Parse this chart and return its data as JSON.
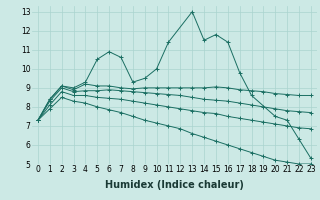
{
  "xlabel": "Humidex (Indice chaleur)",
  "bg_color": "#cce9e5",
  "grid_color": "#aad4cf",
  "line_color": "#1a6e62",
  "xlim": [
    -0.5,
    23.5
  ],
  "ylim": [
    5,
    13.3
  ],
  "xticks": [
    0,
    1,
    2,
    3,
    4,
    5,
    6,
    7,
    8,
    9,
    10,
    11,
    12,
    13,
    14,
    15,
    16,
    17,
    18,
    19,
    20,
    21,
    22,
    23
  ],
  "yticks": [
    5,
    6,
    7,
    8,
    9,
    10,
    11,
    12,
    13
  ],
  "series": [
    {
      "x": [
        0,
        1,
        2,
        3,
        4,
        5,
        6,
        7,
        8,
        9,
        10,
        11,
        13,
        14,
        15,
        16,
        17,
        18,
        20,
        21,
        22,
        23
      ],
      "y": [
        7.3,
        8.4,
        9.1,
        9.0,
        9.3,
        10.5,
        10.9,
        10.6,
        9.3,
        9.5,
        10.0,
        11.4,
        13.0,
        11.5,
        11.8,
        11.4,
        9.8,
        8.6,
        7.5,
        7.3,
        6.3,
        5.3
      ]
    },
    {
      "x": [
        0,
        1,
        2,
        3,
        4,
        5,
        6,
        7,
        8,
        9,
        10,
        11,
        12,
        13,
        14,
        15,
        16,
        17,
        18,
        19,
        20,
        21,
        22,
        23
      ],
      "y": [
        7.3,
        8.4,
        9.1,
        8.9,
        9.2,
        9.1,
        9.1,
        9.0,
        8.95,
        9.0,
        9.0,
        9.0,
        9.0,
        9.0,
        9.0,
        9.05,
        9.0,
        8.9,
        8.85,
        8.8,
        8.7,
        8.65,
        8.6,
        8.6
      ]
    },
    {
      "x": [
        0,
        1,
        2,
        3,
        4,
        5,
        6,
        7,
        8,
        9,
        10,
        11,
        12,
        13,
        14,
        15,
        16,
        17,
        18,
        19,
        20,
        21,
        22,
        23
      ],
      "y": [
        7.3,
        8.3,
        9.0,
        8.8,
        8.85,
        8.85,
        8.9,
        8.85,
        8.8,
        8.75,
        8.7,
        8.65,
        8.6,
        8.5,
        8.4,
        8.35,
        8.3,
        8.2,
        8.1,
        8.0,
        7.9,
        7.8,
        7.75,
        7.7
      ]
    },
    {
      "x": [
        0,
        1,
        2,
        3,
        4,
        5,
        6,
        7,
        8,
        9,
        10,
        11,
        12,
        13,
        14,
        15,
        16,
        17,
        18,
        19,
        20,
        21,
        22,
        23
      ],
      "y": [
        7.3,
        8.1,
        8.8,
        8.6,
        8.6,
        8.5,
        8.45,
        8.4,
        8.3,
        8.2,
        8.1,
        8.0,
        7.9,
        7.8,
        7.7,
        7.65,
        7.5,
        7.4,
        7.3,
        7.2,
        7.1,
        7.0,
        6.9,
        6.85
      ]
    },
    {
      "x": [
        0,
        1,
        2,
        3,
        4,
        5,
        6,
        7,
        8,
        9,
        10,
        11,
        12,
        13,
        14,
        15,
        16,
        17,
        18,
        19,
        20,
        21,
        22,
        23
      ],
      "y": [
        7.3,
        7.9,
        8.5,
        8.3,
        8.2,
        8.0,
        7.85,
        7.7,
        7.5,
        7.3,
        7.15,
        7.0,
        6.85,
        6.6,
        6.4,
        6.2,
        6.0,
        5.8,
        5.6,
        5.4,
        5.2,
        5.1,
        5.0,
        5.0
      ]
    }
  ],
  "marker": "+",
  "xlabel_fontsize": 7,
  "tick_fontsize": 5.5
}
